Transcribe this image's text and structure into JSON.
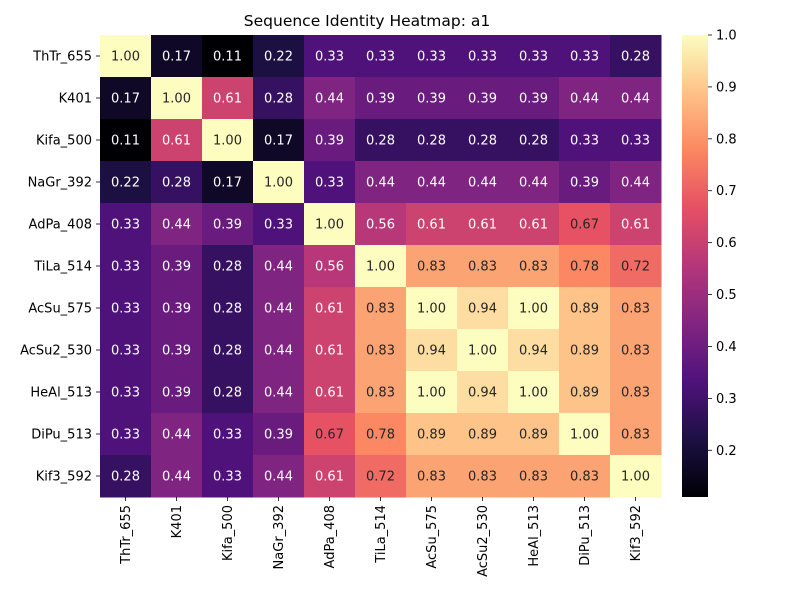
{
  "chart_data": {
    "type": "heatmap",
    "title": "Sequence Identity Heatmap: a1",
    "row_labels": [
      "ThTr_655",
      "K401",
      "Kifa_500",
      "NaGr_392",
      "AdPa_408",
      "TiLa_514",
      "AcSu_575",
      "AcSu2_530",
      "HeAl_513",
      "DiPu_513",
      "Kif3_592"
    ],
    "col_labels": [
      "ThTr_655",
      "K401",
      "Kifa_500",
      "NaGr_392",
      "AdPa_408",
      "TiLa_514",
      "AcSu_575",
      "AcSu2_530",
      "HeAl_513",
      "DiPu_513",
      "Kif3_592"
    ],
    "values": [
      [
        1.0,
        0.17,
        0.11,
        0.22,
        0.33,
        0.33,
        0.33,
        0.33,
        0.33,
        0.33,
        0.28
      ],
      [
        0.17,
        1.0,
        0.61,
        0.28,
        0.44,
        0.39,
        0.39,
        0.39,
        0.39,
        0.44,
        0.44
      ],
      [
        0.11,
        0.61,
        1.0,
        0.17,
        0.39,
        0.28,
        0.28,
        0.28,
        0.28,
        0.33,
        0.33
      ],
      [
        0.22,
        0.28,
        0.17,
        1.0,
        0.33,
        0.44,
        0.44,
        0.44,
        0.44,
        0.39,
        0.44
      ],
      [
        0.33,
        0.44,
        0.39,
        0.33,
        1.0,
        0.56,
        0.61,
        0.61,
        0.61,
        0.67,
        0.61
      ],
      [
        0.33,
        0.39,
        0.28,
        0.44,
        0.56,
        1.0,
        0.83,
        0.83,
        0.83,
        0.78,
        0.72
      ],
      [
        0.33,
        0.39,
        0.28,
        0.44,
        0.61,
        0.83,
        1.0,
        0.94,
        1.0,
        0.89,
        0.83
      ],
      [
        0.33,
        0.39,
        0.28,
        0.44,
        0.61,
        0.83,
        0.94,
        1.0,
        0.94,
        0.89,
        0.83
      ],
      [
        0.33,
        0.39,
        0.28,
        0.44,
        0.61,
        0.83,
        1.0,
        0.94,
        1.0,
        0.89,
        0.83
      ],
      [
        0.33,
        0.44,
        0.33,
        0.39,
        0.67,
        0.78,
        0.89,
        0.89,
        0.89,
        1.0,
        0.83
      ],
      [
        0.28,
        0.44,
        0.33,
        0.44,
        0.61,
        0.72,
        0.83,
        0.83,
        0.83,
        0.83,
        1.0
      ]
    ],
    "value_format": "2 decimals",
    "colormap": "magma",
    "color_range": [
      0.11,
      1.0
    ],
    "colorbar_ticks": [
      "0.2",
      "0.3",
      "0.4",
      "0.5",
      "0.6",
      "0.7",
      "0.8",
      "0.9",
      "1.0"
    ],
    "colorbar_tick_values": [
      0.2,
      0.3,
      0.4,
      0.5,
      0.6,
      0.7,
      0.8,
      0.9,
      1.0
    ],
    "grid": false,
    "legend": "colorbar-right"
  }
}
